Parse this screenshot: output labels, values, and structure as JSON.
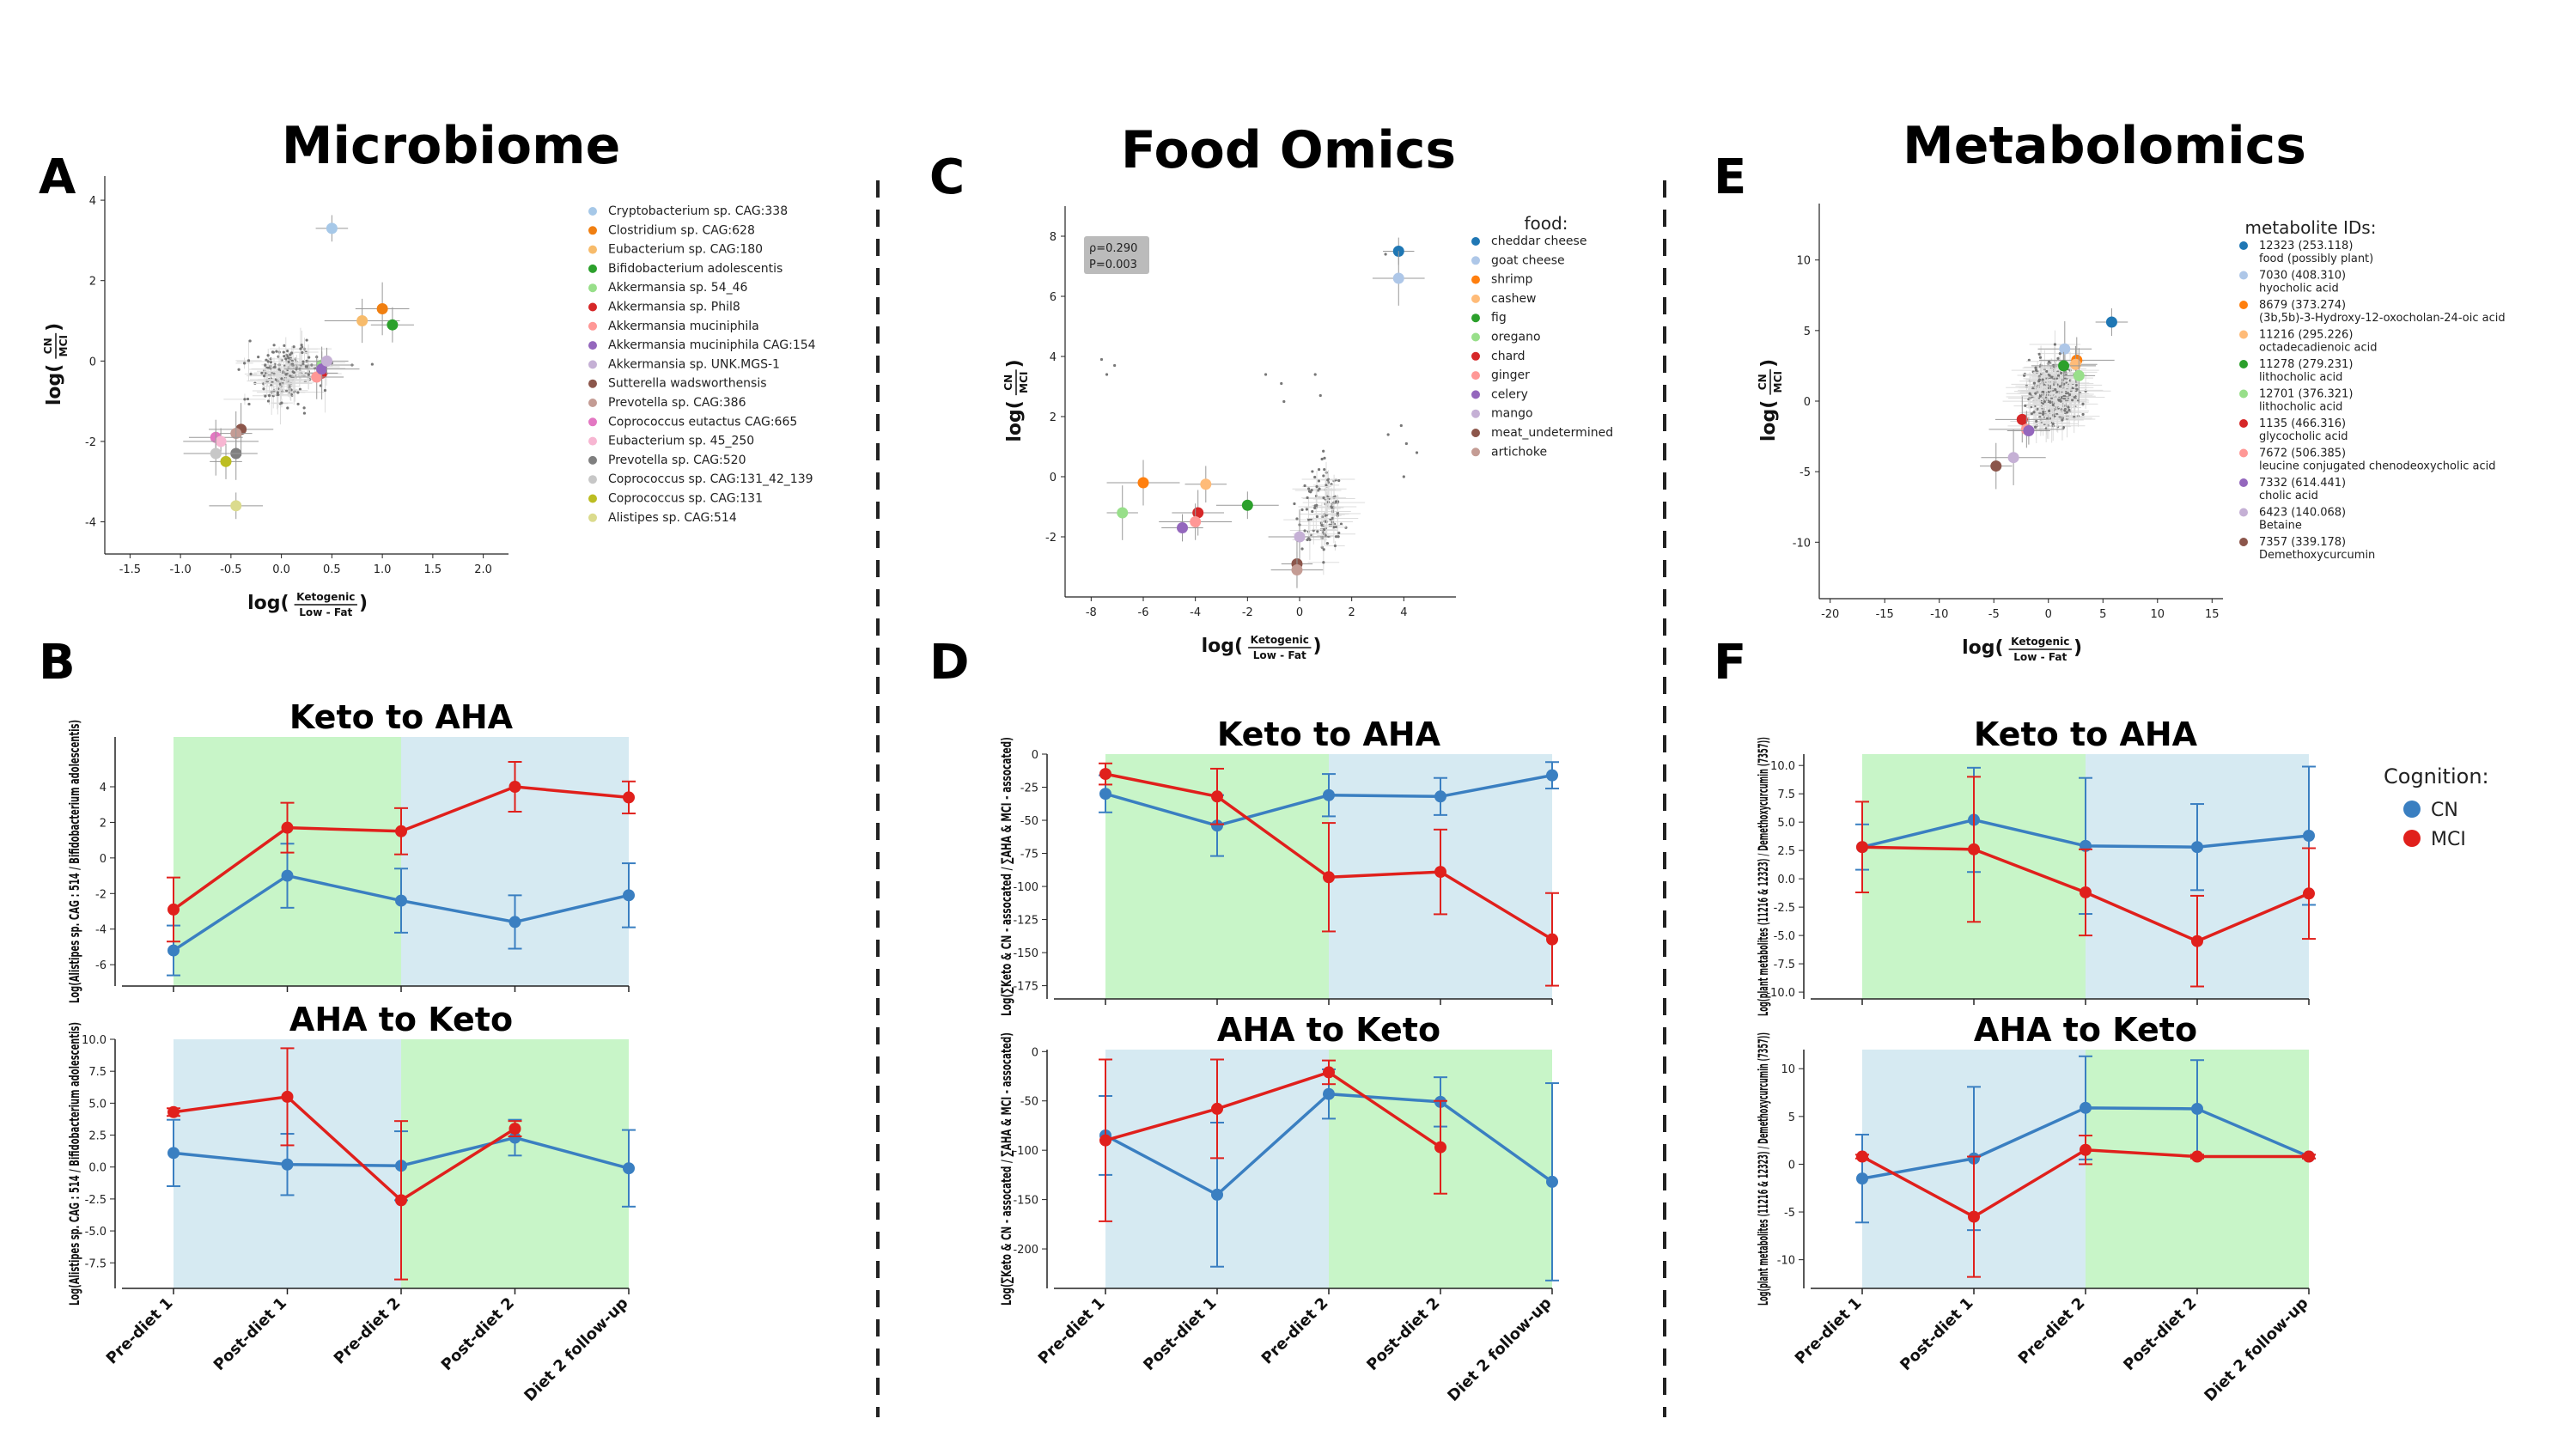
{
  "panels": {
    "A": "A",
    "B": "B",
    "C": "C",
    "D": "D",
    "E": "E",
    "F": "F"
  },
  "section_titles": {
    "microbiome": "Microbiome",
    "food": "Food Omics",
    "metabolomics": "Metabolomics"
  },
  "colors": {
    "cn": "#3a7fc1",
    "mci": "#e0201c",
    "green_band": "#c8f5c8",
    "blue_band": "#d6eaf2"
  },
  "chart_data": [
    {
      "id": "A",
      "type": "scatter",
      "xlabel_prefix": "log(",
      "xlabel_num": "Ketogenic",
      "xlabel_den": "Low - Fat",
      "xlabel_suffix": ")",
      "ylabel_prefix": "log(",
      "ylabel_num": "CN",
      "ylabel_den": "MCI",
      "ylabel_suffix": ")",
      "xlim": [
        -1.75,
        2.25
      ],
      "ylim": [
        -4.8,
        4.6
      ],
      "xticks": [
        "-1.5",
        "-1.0",
        "-0.5",
        "0.0",
        "0.5",
        "1.0",
        "1.5",
        "2.0"
      ],
      "xtick_vals": [
        -1.5,
        -1.0,
        -0.5,
        0.0,
        0.5,
        1.0,
        1.5,
        2.0
      ],
      "yticks": [
        "-4",
        "-2",
        "0",
        "2",
        "4"
      ],
      "ytick_vals": [
        -4,
        -2,
        0,
        2,
        4
      ],
      "legend_title": "",
      "series": [
        {
          "name": "Cryptobacterium sp. CAG:338",
          "color": "#a6c8e8",
          "x": 0.5,
          "y": 3.3
        },
        {
          "name": "Clostridium sp. CAG:628",
          "color": "#f07f11",
          "x": 1.0,
          "y": 1.3
        },
        {
          "name": "Eubacterium sp. CAG:180",
          "color": "#f7bb6b",
          "x": 0.8,
          "y": 1.0
        },
        {
          "name": "Bifidobacterium adolescentis",
          "color": "#2ca02c",
          "x": 1.1,
          "y": 0.9
        },
        {
          "name": "Akkermansia sp. 54_46",
          "color": "#98df8a",
          "x": 0.4,
          "y": -0.1
        },
        {
          "name": "Akkermansia sp. Phil8",
          "color": "#d62728",
          "x": 0.4,
          "y": -0.3
        },
        {
          "name": "Akkermansia muciniphila",
          "color": "#ff9896",
          "x": 0.35,
          "y": -0.4
        },
        {
          "name": "Akkermansia muciniphila CAG:154",
          "color": "#9467bd",
          "x": 0.4,
          "y": -0.2
        },
        {
          "name": "Akkermansia sp. UNK.MGS-1",
          "color": "#c5b0d5",
          "x": 0.45,
          "y": 0.0
        },
        {
          "name": "Sutterella wadsworthensis",
          "color": "#8c564b",
          "x": -0.4,
          "y": -1.7
        },
        {
          "name": "Prevotella sp. CAG:386",
          "color": "#c49c94",
          "x": -0.45,
          "y": -1.8
        },
        {
          "name": "Coprococcus eutactus CAG:665",
          "color": "#e377c2",
          "x": -0.65,
          "y": -1.9
        },
        {
          "name": "Eubacterium sp. 45_250",
          "color": "#f7b6d2",
          "x": -0.6,
          "y": -2.0
        },
        {
          "name": "Prevotella sp. CAG:520",
          "color": "#7f7f7f",
          "x": -0.45,
          "y": -2.3
        },
        {
          "name": "Coprococcus sp. CAG:131_42_139",
          "color": "#c7c7c7",
          "x": -0.65,
          "y": -2.3
        },
        {
          "name": "Coprococcus sp. CAG:131",
          "color": "#bcbd22",
          "x": -0.55,
          "y": -2.5
        },
        {
          "name": "Alistipes sp. CAG:514",
          "color": "#dbdb8d",
          "x": -0.45,
          "y": -3.6
        }
      ]
    },
    {
      "id": "C",
      "type": "scatter",
      "xlabel_prefix": "log(",
      "xlabel_num": "Ketogenic",
      "xlabel_den": "Low - Fat",
      "xlabel_suffix": ")",
      "ylabel_prefix": "log(",
      "ylabel_num": "CN",
      "ylabel_den": "MCI",
      "ylabel_suffix": ")",
      "xlim": [
        -9,
        6
      ],
      "ylim": [
        -4,
        9
      ],
      "xticks": [
        "-8",
        "-6",
        "-4",
        "-2",
        "0",
        "2",
        "4"
      ],
      "xtick_vals": [
        -8,
        -6,
        -4,
        -2,
        0,
        2,
        4
      ],
      "yticks": [
        "-2",
        "0",
        "2",
        "4",
        "6",
        "8"
      ],
      "ytick_vals": [
        -2,
        0,
        2,
        4,
        6,
        8
      ],
      "annotation": [
        "ρ=0.290",
        "P=0.003"
      ],
      "legend_title": "food:",
      "series": [
        {
          "name": "cheddar cheese",
          "color": "#1f77b4",
          "x": 3.8,
          "y": 7.5
        },
        {
          "name": "goat cheese",
          "color": "#aec7e8",
          "x": 3.8,
          "y": 6.6
        },
        {
          "name": "shrimp",
          "color": "#ff7f0e",
          "x": -6.0,
          "y": -0.2
        },
        {
          "name": "cashew",
          "color": "#ffbb78",
          "x": -3.6,
          "y": -0.25
        },
        {
          "name": "fig",
          "color": "#2ca02c",
          "x": -2.0,
          "y": -0.95
        },
        {
          "name": "oregano",
          "color": "#98df8a",
          "x": -6.8,
          "y": -1.2
        },
        {
          "name": "chard",
          "color": "#d62728",
          "x": -3.9,
          "y": -1.2
        },
        {
          "name": "ginger",
          "color": "#ff9896",
          "x": -4.0,
          "y": -1.5
        },
        {
          "name": "celery",
          "color": "#9467bd",
          "x": -4.5,
          "y": -1.7
        },
        {
          "name": "mango",
          "color": "#c5b0d5",
          "x": 0.0,
          "y": -2.0
        },
        {
          "name": "meat_undetermined",
          "color": "#8c564b",
          "x": -0.1,
          "y": -2.9
        },
        {
          "name": "artichoke",
          "color": "#c49c94",
          "x": -0.1,
          "y": -3.1
        }
      ]
    },
    {
      "id": "E",
      "type": "scatter",
      "xlabel_prefix": "log(",
      "xlabel_num": "Ketogenic",
      "xlabel_den": "Low - Fat",
      "xlabel_suffix": ")",
      "ylabel_prefix": "log(",
      "ylabel_num": "CN",
      "ylabel_den": "MCI",
      "ylabel_suffix": ")",
      "xlim": [
        -21,
        16
      ],
      "ylim": [
        -14,
        14
      ],
      "xticks": [
        "-20",
        "-15",
        "-10",
        "-5",
        "0",
        "5",
        "10",
        "15"
      ],
      "xtick_vals": [
        -20,
        -15,
        -10,
        -5,
        0,
        5,
        10,
        15
      ],
      "yticks": [
        "-10",
        "-5",
        "0",
        "5",
        "10"
      ],
      "ytick_vals": [
        -10,
        -5,
        0,
        5,
        10
      ],
      "legend_title": "metabolite IDs:",
      "series": [
        {
          "name": "12323 (253.118)",
          "name2": "food (possibly plant)",
          "color": "#1f77b4",
          "x": 5.8,
          "y": 5.6
        },
        {
          "name": "7030 (408.310)",
          "name2": "hyocholic acid",
          "color": "#aec7e8",
          "x": 1.5,
          "y": 3.7
        },
        {
          "name": "8679 (373.274)",
          "name2": "(3b,5b)-3-Hydroxy-12-oxocholan-24-oic acid",
          "color": "#ff7f0e",
          "x": 2.6,
          "y": 2.9
        },
        {
          "name": "11216 (295.226)",
          "name2": "octadecadienoic acid",
          "color": "#ffbb78",
          "x": 2.5,
          "y": 2.6
        },
        {
          "name": "11278 (279.231)",
          "name2": "lithocholic acid",
          "color": "#2ca02c",
          "x": 1.4,
          "y": 2.5
        },
        {
          "name": "12701 (376.321)",
          "name2": "lithocholic acid",
          "color": "#98df8a",
          "x": 2.8,
          "y": 1.8
        },
        {
          "name": "1135 (466.316)",
          "name2": "glycocholic acid",
          "color": "#d62728",
          "x": -2.4,
          "y": -1.3
        },
        {
          "name": "7672 (506.385)",
          "name2": "leucine conjugated chenodeoxycholic acid",
          "color": "#ff9896",
          "x": -2.0,
          "y": -2.0
        },
        {
          "name": "7332 (614.441)",
          "name2": "cholic acid",
          "color": "#9467bd",
          "x": -1.8,
          "y": -2.1
        },
        {
          "name": "6423 (140.068)",
          "name2": "Betaine",
          "color": "#c5b0d5",
          "x": -3.2,
          "y": -4.0
        },
        {
          "name": "7357 (339.178)",
          "name2": "Demethoxycurcumin",
          "color": "#8c564b",
          "x": -4.8,
          "y": -4.6
        }
      ]
    },
    {
      "id": "B-top",
      "type": "line",
      "title": "Keto to AHA",
      "ylabel": "Log(Alistipes sp. CAG : 514 / Bifidobacterium adolescentis)",
      "ylim": [
        -7.2,
        6.8
      ],
      "yticks": [
        "-6",
        "-4",
        "-2",
        "0",
        "2",
        "4"
      ],
      "ytick_vals": [
        -6,
        -4,
        -2,
        0,
        2,
        4
      ],
      "bands": [
        "green",
        "green",
        "blue",
        "blue"
      ],
      "x_labels": [],
      "series": [
        {
          "name": "CN",
          "values": [
            -5.2,
            -1.0,
            -2.4,
            -3.6,
            -2.1
          ],
          "err": [
            1.4,
            1.8,
            1.8,
            1.5,
            1.8
          ]
        },
        {
          "name": "MCI",
          "values": [
            -2.9,
            1.7,
            1.5,
            4.0,
            3.4
          ],
          "err": [
            1.8,
            1.4,
            1.3,
            1.4,
            0.9
          ]
        }
      ]
    },
    {
      "id": "B-bottom",
      "type": "line",
      "title": "AHA to Keto",
      "ylabel": "Log(Alistipes sp. CAG : 514 / Bifidobacterium adolescentis)",
      "ylim": [
        -9.5,
        10.0
      ],
      "yticks": [
        "-7.5",
        "-5.0",
        "-2.5",
        "0.0",
        "2.5",
        "5.0",
        "7.5",
        "10.0"
      ],
      "ytick_vals": [
        -7.5,
        -5.0,
        -2.5,
        0.0,
        2.5,
        5.0,
        7.5,
        10.0
      ],
      "bands": [
        "blue",
        "blue",
        "green",
        "green"
      ],
      "x_labels": [
        "Pre-diet 1",
        "Post-diet 1",
        "Pre-diet 2",
        "Post-diet 2",
        "Diet 2 follow-up"
      ],
      "series": [
        {
          "name": "CN",
          "values": [
            1.1,
            0.2,
            0.1,
            2.3,
            -0.1
          ],
          "err": [
            2.6,
            2.4,
            2.7,
            1.4,
            3.0
          ]
        },
        {
          "name": "MCI",
          "values": [
            4.3,
            5.5,
            -2.6,
            3.0,
            null
          ],
          "err": [
            0.3,
            3.8,
            6.2,
            0.6,
            0
          ]
        }
      ]
    },
    {
      "id": "D-top",
      "type": "line",
      "title": "Keto to AHA",
      "ylabel": "Log(∑Keto & CN - assocated / ∑AHA & MCI - assocated)",
      "ylim": [
        -185,
        0
      ],
      "yticks": [
        "0",
        "-25",
        "-50",
        "-75",
        "-100",
        "-125",
        "-150",
        "-175"
      ],
      "ytick_vals": [
        0,
        -25,
        -50,
        -75,
        -100,
        -125,
        -150,
        -175
      ],
      "bands": [
        "green",
        "green",
        "blue",
        "blue"
      ],
      "x_labels": [],
      "series": [
        {
          "name": "CN",
          "values": [
            -30,
            -54,
            -31,
            -32,
            -16
          ],
          "err": [
            14,
            23,
            16,
            14,
            10
          ]
        },
        {
          "name": "MCI",
          "values": [
            -15,
            -32,
            -93,
            -89,
            -140
          ],
          "err": [
            8,
            21,
            41,
            32,
            35
          ]
        }
      ]
    },
    {
      "id": "D-bottom",
      "type": "line",
      "title": "AHA to Keto",
      "ylabel": "Log(∑Keto & CN - assocated / ∑AHA & MCI - assocated)",
      "ylim": [
        -240,
        2
      ],
      "yticks": [
        "0",
        "-50",
        "-100",
        "-150",
        "-200"
      ],
      "ytick_vals": [
        0,
        -50,
        -100,
        -150,
        -200
      ],
      "bands": [
        "blue",
        "blue",
        "green",
        "green"
      ],
      "x_labels": [
        "Pre-diet 1",
        "Post-diet 1",
        "Pre-diet 2",
        "Post-diet 2",
        "Diet 2 follow-up"
      ],
      "series": [
        {
          "name": "CN",
          "values": [
            -85,
            -145,
            -43,
            -51,
            -132
          ],
          "err": [
            40,
            73,
            25,
            25,
            100
          ]
        },
        {
          "name": "MCI",
          "values": [
            -90,
            -58,
            -21,
            -97,
            null
          ],
          "err": [
            82,
            50,
            12,
            47,
            0
          ]
        }
      ]
    },
    {
      "id": "F-top",
      "type": "line",
      "title": "Keto to AHA",
      "ylabel": "Log(plant metabolites (11216 & 12323) / Demethoxycurcumin (7357))",
      "ylim": [
        -10.6,
        11.0
      ],
      "yticks": [
        "10.0",
        "7.5",
        "5.0",
        "2.5",
        "0.0",
        "-2.5",
        "-5.0",
        "-7.5",
        "-10.0"
      ],
      "ytick_vals": [
        10.0,
        7.5,
        5.0,
        2.5,
        0.0,
        -2.5,
        -5.0,
        -7.5,
        -10.0
      ],
      "bands": [
        "green",
        "green",
        "blue",
        "blue"
      ],
      "x_labels": [],
      "series": [
        {
          "name": "CN",
          "values": [
            2.8,
            5.2,
            2.9,
            2.8,
            3.8
          ],
          "err": [
            2.0,
            4.6,
            6.0,
            3.8,
            6.1
          ]
        },
        {
          "name": "MCI",
          "values": [
            2.8,
            2.6,
            -1.2,
            -5.5,
            -1.3
          ],
          "err": [
            4.0,
            6.4,
            3.8,
            4.0,
            4.0
          ]
        }
      ]
    },
    {
      "id": "F-bottom",
      "type": "line",
      "title": "AHA to Keto",
      "ylabel": "Log(plant metabolites (11216 & 12323) / Demethoxycurcumin (7357))",
      "ylim": [
        -13,
        12
      ],
      "yticks": [
        "10",
        "5",
        "0",
        "-5",
        "-10"
      ],
      "ytick_vals": [
        10,
        5,
        0,
        -5,
        -10
      ],
      "bands": [
        "blue",
        "blue",
        "green",
        "green"
      ],
      "x_labels": [
        "Pre-diet 1",
        "Post-diet 1",
        "Pre-diet 2",
        "Post-diet 2",
        "Diet 2 follow-up"
      ],
      "series": [
        {
          "name": "CN",
          "values": [
            -1.5,
            0.6,
            5.9,
            5.8,
            0.8
          ],
          "err": [
            4.6,
            7.5,
            5.4,
            5.1,
            0.2
          ]
        },
        {
          "name": "MCI",
          "values": [
            0.8,
            -5.5,
            1.5,
            0.8,
            0.8
          ],
          "err": [
            0.2,
            6.3,
            1.5,
            0.2,
            0.2
          ]
        }
      ]
    }
  ],
  "cognition_legend": {
    "title": "Cognition:",
    "items": [
      {
        "label": "CN",
        "color": "#3a7fc1"
      },
      {
        "label": "MCI",
        "color": "#e0201c"
      }
    ]
  }
}
